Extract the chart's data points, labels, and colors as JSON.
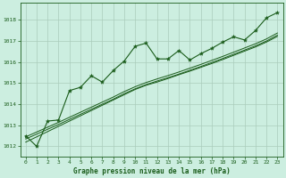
{
  "title": "Graphe pression niveau de la mer (hPa)",
  "bg_color": "#cceee0",
  "grid_color": "#aaccbb",
  "line_color": "#1a5c1a",
  "marker_color": "#1a5c1a",
  "xlim": [
    -0.5,
    23.5
  ],
  "ylim": [
    1011.5,
    1018.8
  ],
  "xticks": [
    0,
    1,
    2,
    3,
    4,
    5,
    6,
    7,
    8,
    9,
    10,
    11,
    12,
    13,
    14,
    15,
    16,
    17,
    18,
    19,
    20,
    21,
    22,
    23
  ],
  "yticks": [
    1012,
    1013,
    1014,
    1015,
    1016,
    1017,
    1018
  ],
  "hours": [
    0,
    1,
    2,
    3,
    4,
    5,
    6,
    7,
    8,
    9,
    10,
    11,
    12,
    13,
    14,
    15,
    16,
    17,
    18,
    19,
    20,
    21,
    22,
    23
  ],
  "pressure_main": [
    1012.5,
    1012.0,
    1013.2,
    1013.25,
    1014.65,
    1014.8,
    1015.35,
    1015.05,
    1015.6,
    1016.05,
    1016.75,
    1016.9,
    1016.15,
    1016.15,
    1016.55,
    1016.1,
    1016.4,
    1016.65,
    1016.95,
    1017.2,
    1017.05,
    1017.5,
    1018.1,
    1018.35
  ],
  "pressure_trend1": [
    1012.2,
    1012.45,
    1012.7,
    1012.95,
    1013.2,
    1013.45,
    1013.7,
    1013.95,
    1014.2,
    1014.45,
    1014.7,
    1014.9,
    1015.05,
    1015.22,
    1015.4,
    1015.57,
    1015.75,
    1015.93,
    1016.12,
    1016.32,
    1016.52,
    1016.72,
    1016.95,
    1017.22
  ],
  "pressure_trend2": [
    1012.35,
    1012.58,
    1012.81,
    1013.04,
    1013.28,
    1013.52,
    1013.76,
    1014.0,
    1014.24,
    1014.5,
    1014.73,
    1014.93,
    1015.1,
    1015.26,
    1015.43,
    1015.61,
    1015.79,
    1015.98,
    1016.17,
    1016.37,
    1016.57,
    1016.77,
    1017.0,
    1017.28
  ],
  "pressure_trend3": [
    1012.45,
    1012.68,
    1012.91,
    1013.14,
    1013.38,
    1013.62,
    1013.86,
    1014.1,
    1014.34,
    1014.6,
    1014.83,
    1015.03,
    1015.2,
    1015.36,
    1015.53,
    1015.71,
    1015.89,
    1016.08,
    1016.27,
    1016.47,
    1016.67,
    1016.87,
    1017.1,
    1017.38
  ]
}
